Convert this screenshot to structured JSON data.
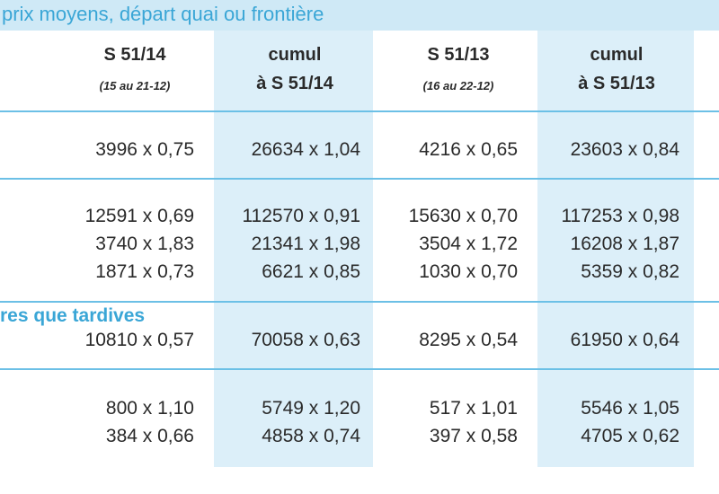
{
  "header": {
    "title": "prix moyens, départ quai ou frontière"
  },
  "table": {
    "columns": [
      {
        "label": "S 51/14",
        "sub": "(15 au 21-12)"
      },
      {
        "label": "cumul",
        "sub": "à S 51/14"
      },
      {
        "label": "S 51/13",
        "sub": "(16 au 22-12)"
      },
      {
        "label": "cumul",
        "sub": "à S 51/13"
      }
    ],
    "groups": [
      {
        "rows": [
          [
            "3996 x 0,75",
            "26634 x 1,04",
            "4216 x 0,65",
            "23603 x 0,84"
          ]
        ]
      },
      {
        "rows": [
          [
            "12591 x 0,69",
            "112570 x 0,91",
            "15630 x 0,70",
            "117253 x 0,98"
          ],
          [
            "3740 x 1,83",
            "21341 x 1,98",
            "3504 x 1,72",
            "16208 x 1,87"
          ],
          [
            "1871 x 0,73",
            "6621 x 0,85",
            "1030 x 0,70",
            "5359 x 0,82"
          ]
        ]
      },
      {
        "label": "res que tardives",
        "rows": [
          [
            "10810 x 0,57",
            "70058 x 0,63",
            "8295 x 0,54",
            "61950 x 0,64"
          ]
        ]
      },
      {
        "rows": [
          [
            "800 x 1,10",
            "5749 x 1,20",
            "517 x 1,01",
            "5546 x 1,05"
          ],
          [
            "384 x 0,66",
            "4858 x 0,74",
            "397 x 0,58",
            "4705 x 0,62"
          ]
        ]
      }
    ]
  }
}
